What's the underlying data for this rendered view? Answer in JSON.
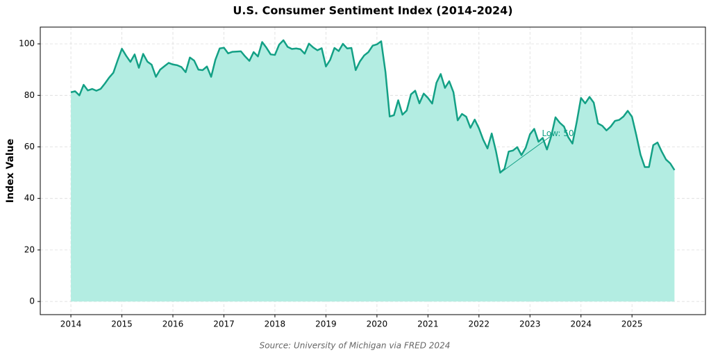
{
  "chart_data": {
    "type": "area",
    "title": "U.S. Consumer Sentiment Index (2014-2024)",
    "y_label": "Index Value",
    "source": "Source: University of Michigan via FRED 2024",
    "annotation": "Low: 50",
    "color": "#13a085",
    "fill_color": "#b3ede2",
    "grid": true,
    "xlim": [
      2013.4,
      2026.44
    ],
    "xticks": [
      2014,
      2015,
      2016,
      2017,
      2018,
      2019,
      2020,
      2021,
      2022,
      2023,
      2024,
      2025
    ],
    "ylim": [
      -5.1,
      106.5
    ],
    "yticks": [
      0,
      20,
      40,
      60,
      80,
      100
    ],
    "x": [
      2014.0,
      2014.083,
      2014.167,
      2014.25,
      2014.333,
      2014.417,
      2014.5,
      2014.583,
      2014.667,
      2014.75,
      2014.833,
      2014.917,
      2015.0,
      2015.083,
      2015.167,
      2015.25,
      2015.333,
      2015.417,
      2015.5,
      2015.583,
      2015.667,
      2015.75,
      2015.833,
      2015.917,
      2016.0,
      2016.083,
      2016.167,
      2016.25,
      2016.333,
      2016.417,
      2016.5,
      2016.583,
      2016.667,
      2016.75,
      2016.833,
      2016.917,
      2017.0,
      2017.083,
      2017.167,
      2017.25,
      2017.333,
      2017.417,
      2017.5,
      2017.583,
      2017.667,
      2017.75,
      2017.833,
      2017.917,
      2018.0,
      2018.083,
      2018.167,
      2018.25,
      2018.333,
      2018.417,
      2018.5,
      2018.583,
      2018.667,
      2018.75,
      2018.833,
      2018.917,
      2019.0,
      2019.083,
      2019.167,
      2019.25,
      2019.333,
      2019.417,
      2019.5,
      2019.583,
      2019.667,
      2019.75,
      2019.833,
      2019.917,
      2020.0,
      2020.083,
      2020.167,
      2020.25,
      2020.333,
      2020.417,
      2020.5,
      2020.583,
      2020.667,
      2020.75,
      2020.833,
      2020.917,
      2021.0,
      2021.083,
      2021.167,
      2021.25,
      2021.333,
      2021.417,
      2021.5,
      2021.583,
      2021.667,
      2021.75,
      2021.833,
      2021.917,
      2022.0,
      2022.083,
      2022.167,
      2022.25,
      2022.333,
      2022.417,
      2022.5,
      2022.583,
      2022.667,
      2022.75,
      2022.833,
      2022.917,
      2023.0,
      2023.083,
      2023.167,
      2023.25,
      2023.333,
      2023.417,
      2023.5,
      2023.583,
      2023.667,
      2023.75,
      2023.833,
      2023.917,
      2024.0,
      2024.083,
      2024.167,
      2024.25,
      2024.333,
      2024.417,
      2024.5,
      2024.583,
      2024.667,
      2024.75,
      2024.833,
      2024.917,
      2025.0,
      2025.083,
      2025.167,
      2025.25,
      2025.333,
      2025.417,
      2025.5,
      2025.583,
      2025.667,
      2025.75,
      2025.833
    ],
    "values": [
      81.2,
      81.6,
      80.0,
      84.1,
      81.9,
      82.5,
      81.8,
      82.5,
      84.6,
      86.9,
      88.8,
      93.6,
      98.1,
      95.4,
      93.0,
      95.9,
      90.7,
      96.1,
      93.1,
      91.9,
      87.2,
      90.0,
      91.3,
      92.6,
      92.0,
      91.7,
      91.0,
      89.0,
      94.7,
      93.5,
      90.0,
      89.8,
      91.2,
      87.2,
      93.8,
      98.2,
      98.5,
      96.3,
      96.9,
      97.0,
      97.1,
      95.1,
      93.4,
      96.8,
      95.1,
      100.7,
      98.5,
      95.9,
      95.7,
      99.7,
      101.4,
      98.8,
      98.0,
      98.2,
      97.9,
      96.2,
      100.1,
      98.6,
      97.5,
      98.3,
      91.2,
      93.8,
      98.4,
      97.2,
      100.0,
      98.2,
      98.4,
      89.8,
      93.2,
      95.5,
      96.8,
      99.3,
      99.8,
      101.0,
      89.1,
      71.8,
      72.3,
      78.1,
      72.5,
      74.1,
      80.4,
      81.8,
      76.9,
      80.7,
      79.0,
      76.8,
      84.9,
      88.3,
      82.9,
      85.5,
      81.2,
      70.3,
      72.8,
      71.7,
      67.4,
      70.6,
      67.2,
      62.8,
      59.4,
      65.2,
      58.4,
      50.0,
      51.5,
      58.2,
      58.6,
      59.9,
      56.8,
      59.7,
      64.9,
      67.0,
      62.0,
      63.5,
      59.0,
      64.2,
      71.5,
      69.4,
      67.9,
      63.8,
      61.3,
      69.7,
      79.0,
      76.9,
      79.4,
      77.2,
      69.1,
      68.2,
      66.4,
      67.9,
      70.1,
      70.5,
      71.8,
      74.0,
      71.7,
      64.7,
      57.0,
      52.2,
      52.2,
      60.7,
      61.7,
      58.2,
      55.1,
      53.6,
      51.0
    ]
  }
}
